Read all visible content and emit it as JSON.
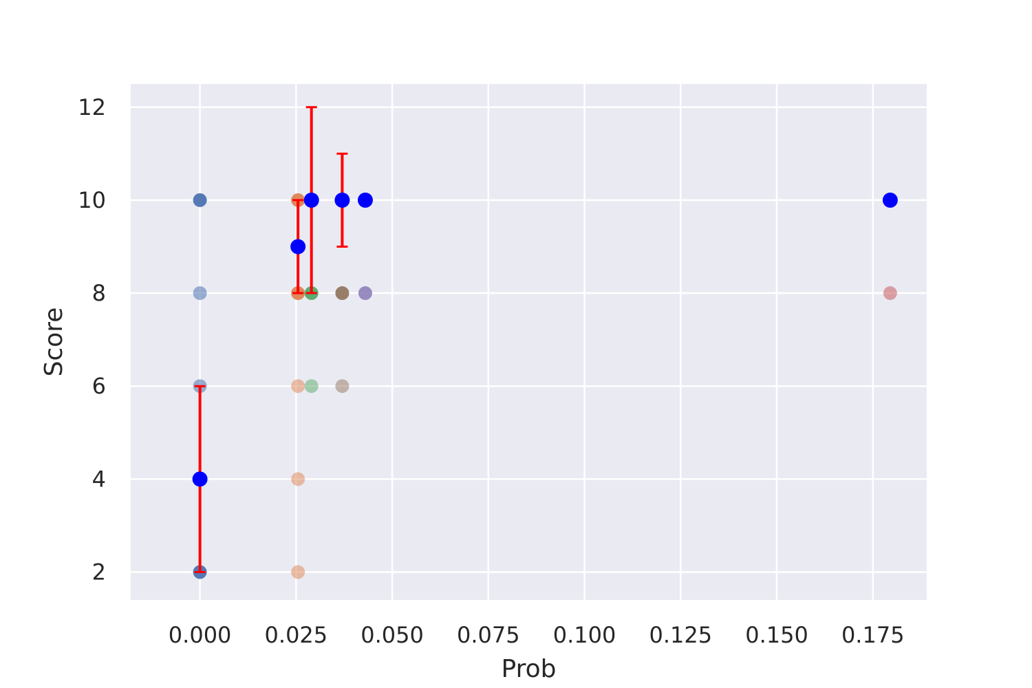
{
  "chart_data": {
    "type": "scatter",
    "title": "",
    "xlabel": "Prob",
    "ylabel": "Score",
    "xlim": [
      -0.018,
      0.189
    ],
    "ylim": [
      1.4,
      12.5
    ],
    "xticks": [
      0.0,
      0.025,
      0.05,
      0.075,
      0.1,
      0.125,
      0.15,
      0.175
    ],
    "xtick_labels": [
      "0.000",
      "0.025",
      "0.050",
      "0.075",
      "0.100",
      "0.125",
      "0.150",
      "0.175"
    ],
    "yticks": [
      2,
      4,
      6,
      8,
      10,
      12
    ],
    "ytick_labels": [
      "2",
      "4",
      "6",
      "8",
      "10",
      "12"
    ],
    "grid": true,
    "background": "#eaeaf2",
    "grid_color": "#ffffff",
    "raw_series": [
      {
        "color": "#4c72b0",
        "points": [
          [
            0.0,
            10,
            0.95
          ],
          [
            0.0,
            8,
            0.55
          ],
          [
            0.0,
            6,
            0.55
          ],
          [
            0.0,
            2,
            0.95
          ]
        ]
      },
      {
        "color": "#dd8452",
        "points": [
          [
            0.0255,
            10,
            0.95
          ],
          [
            0.0255,
            8,
            0.95
          ],
          [
            0.0255,
            6,
            0.5
          ],
          [
            0.0255,
            4,
            0.5
          ],
          [
            0.0255,
            2,
            0.5
          ]
        ]
      },
      {
        "color": "#55a868",
        "points": [
          [
            0.029,
            8,
            0.95
          ],
          [
            0.029,
            6,
            0.5
          ]
        ]
      },
      {
        "color": "#937860",
        "points": [
          [
            0.037,
            8,
            0.95
          ],
          [
            0.037,
            6,
            0.5
          ]
        ]
      },
      {
        "color": "#8172b3",
        "points": [
          [
            0.043,
            8,
            0.8
          ]
        ]
      },
      {
        "color": "#c44e52",
        "points": [
          [
            0.1795,
            8,
            0.5
          ]
        ]
      }
    ],
    "mean_points": {
      "color": "#0000ff",
      "points": [
        [
          0.0,
          4
        ],
        [
          0.0255,
          9
        ],
        [
          0.029,
          10
        ],
        [
          0.037,
          10
        ],
        [
          0.043,
          10
        ],
        [
          0.1795,
          10
        ]
      ]
    },
    "error_bars": {
      "color": "#ff0000",
      "bars": [
        {
          "x": 0.0,
          "low": 2,
          "high": 6
        },
        {
          "x": 0.0255,
          "low": 8,
          "high": 10
        },
        {
          "x": 0.029,
          "low": 8,
          "high": 12
        },
        {
          "x": 0.037,
          "low": 9,
          "high": 11
        }
      ]
    }
  }
}
